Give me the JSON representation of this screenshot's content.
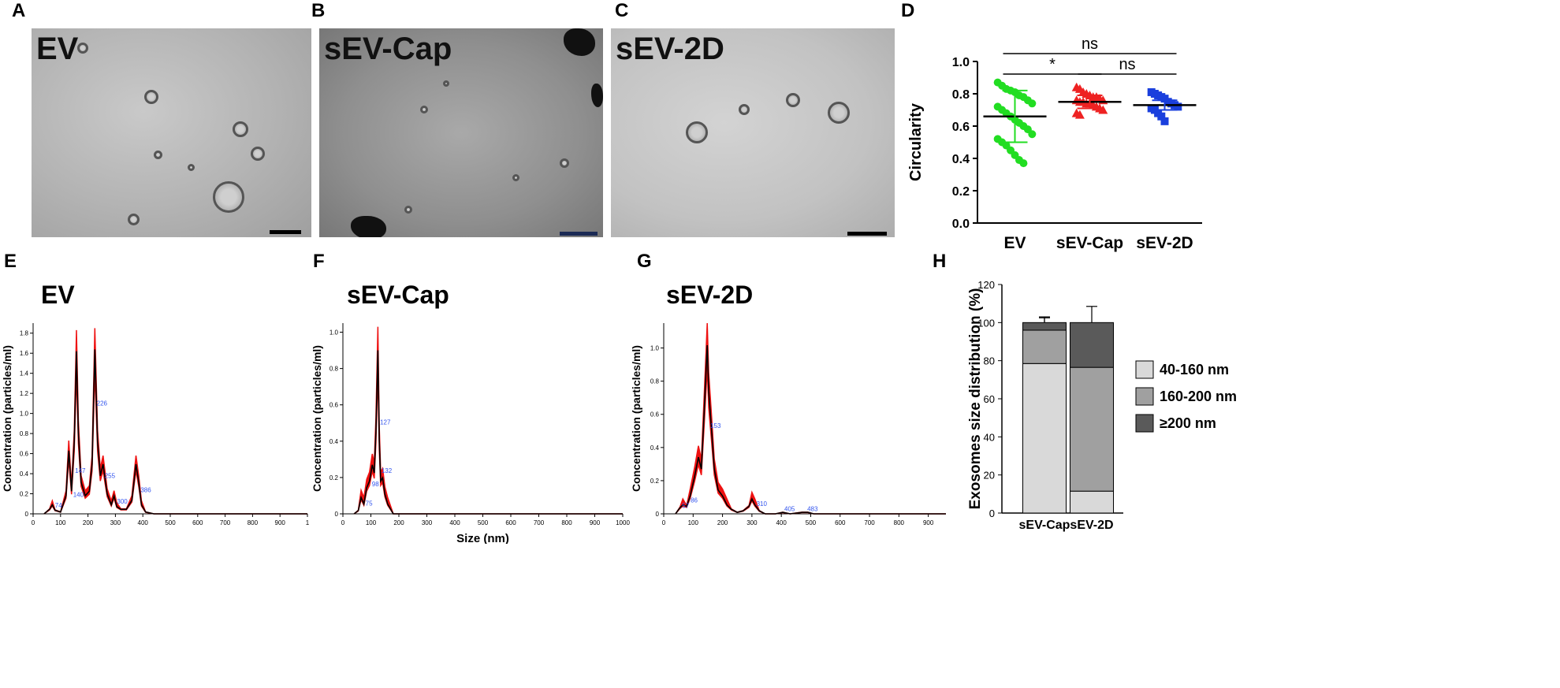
{
  "panels": {
    "A": {
      "letter": "A",
      "title": "EV"
    },
    "B": {
      "letter": "B",
      "title": "sEV-Cap"
    },
    "C": {
      "letter": "C",
      "title": "sEV-2D"
    },
    "D": {
      "letter": "D"
    },
    "E": {
      "letter": "E",
      "title": "EV"
    },
    "F": {
      "letter": "F",
      "title": "sEV-Cap"
    },
    "G": {
      "letter": "G",
      "title": "sEV-2D"
    },
    "H": {
      "letter": "H"
    }
  },
  "colors": {
    "EV": "#22dd22",
    "sEV-Cap": "#ee2222",
    "sEV-2D": "#1a3fdd",
    "nta_fill": "#ee1111"
  },
  "chart_data": [
    {
      "id": "D",
      "type": "scatter",
      "ylabel": "Circularity",
      "ylim": [
        0.0,
        1.0
      ],
      "yticks": [
        "0.0",
        "0.2",
        "0.4",
        "0.6",
        "0.8",
        "1.0"
      ],
      "categories": [
        "EV",
        "sEV-Cap",
        "sEV-2D"
      ],
      "series": [
        {
          "name": "EV",
          "mean": 0.66,
          "sd": [
            0.5,
            0.82
          ],
          "values": [
            0.87,
            0.85,
            0.83,
            0.82,
            0.81,
            0.79,
            0.78,
            0.76,
            0.74,
            0.72,
            0.7,
            0.68,
            0.66,
            0.64,
            0.62,
            0.6,
            0.58,
            0.55,
            0.52,
            0.5,
            0.48,
            0.45,
            0.42,
            0.39,
            0.37
          ]
        },
        {
          "name": "sEV-Cap",
          "mean": 0.75,
          "sd": [
            0.71,
            0.79
          ],
          "values": [
            0.84,
            0.83,
            0.81,
            0.8,
            0.79,
            0.78,
            0.78,
            0.77,
            0.76,
            0.76,
            0.75,
            0.75,
            0.74,
            0.74,
            0.73,
            0.72,
            0.71,
            0.7,
            0.68,
            0.67
          ]
        },
        {
          "name": "sEV-2D",
          "mean": 0.73,
          "sd": [
            0.7,
            0.76
          ],
          "values": [
            0.81,
            0.8,
            0.79,
            0.78,
            0.77,
            0.75,
            0.74,
            0.73,
            0.72,
            0.71,
            0.7,
            0.68,
            0.66,
            0.63
          ]
        }
      ],
      "significance": [
        {
          "from": "EV",
          "to": "sEV-2D",
          "label": "ns"
        },
        {
          "from": "EV",
          "to": "sEV-Cap",
          "label": "*"
        },
        {
          "from": "sEV-Cap",
          "to": "sEV-2D",
          "label": "ns"
        }
      ]
    },
    {
      "id": "E",
      "type": "area",
      "title": "EV",
      "ylabel": "Concentration (particles/ml)",
      "xlim": [
        0,
        1000
      ],
      "ylim": [
        0,
        1.9
      ],
      "xticks": [
        "0",
        "100",
        "200",
        "300",
        "400",
        "500",
        "600",
        "700",
        "800",
        "900",
        "1"
      ],
      "yticks": [
        "0",
        "0.2",
        "0.4",
        "0.6",
        "0.8",
        "1.0",
        "1.2",
        "1.4",
        "1.6",
        "1.8"
      ],
      "x": [
        40,
        60,
        70,
        80,
        100,
        120,
        130,
        140,
        150,
        158,
        165,
        175,
        190,
        205,
        215,
        225,
        235,
        245,
        255,
        270,
        285,
        295,
        305,
        320,
        340,
        360,
        375,
        385,
        395,
        410,
        440,
        1000
      ],
      "y": [
        0,
        0.05,
        0.1,
        0.04,
        0.02,
        0.2,
        0.7,
        0.25,
        0.8,
        1.8,
        0.9,
        0.35,
        0.2,
        0.25,
        0.55,
        1.82,
        0.8,
        0.42,
        0.55,
        0.22,
        0.1,
        0.2,
        0.08,
        0.05,
        0.05,
        0.15,
        0.55,
        0.35,
        0.1,
        0.02,
        0,
        0
      ],
      "peak_labels": [
        {
          "x": 74,
          "label": "74"
        },
        {
          "x": 140,
          "label": "140"
        },
        {
          "x": 147,
          "label": "147"
        },
        {
          "x": 226,
          "label": "226"
        },
        {
          "x": 255,
          "label": "255"
        },
        {
          "x": 300,
          "label": "300"
        },
        {
          "x": 386,
          "label": "386"
        }
      ]
    },
    {
      "id": "F",
      "type": "area",
      "title": "sEV-Cap",
      "ylabel": "Concentration (particles/ml)",
      "xlabel": "Size (nm)",
      "xlim": [
        0,
        1000
      ],
      "ylim": [
        0,
        1.05
      ],
      "xticks": [
        "0",
        "100",
        "200",
        "300",
        "400",
        "500",
        "600",
        "700",
        "800",
        "900",
        "1000"
      ],
      "yticks": [
        "0",
        "0.2",
        "0.4",
        "0.6",
        "0.8",
        "1.0"
      ],
      "x": [
        40,
        55,
        65,
        75,
        85,
        95,
        105,
        112,
        118,
        125,
        130,
        135,
        142,
        150,
        160,
        180,
        1000
      ],
      "y": [
        0,
        0.02,
        0.1,
        0.06,
        0.16,
        0.2,
        0.3,
        0.25,
        0.5,
        1.0,
        0.45,
        0.2,
        0.22,
        0.12,
        0.06,
        0,
        0
      ],
      "peak_labels": [
        {
          "x": 75,
          "label": "75"
        },
        {
          "x": 98,
          "label": "98"
        },
        {
          "x": 127,
          "label": "127"
        },
        {
          "x": 132,
          "label": "132"
        }
      ]
    },
    {
      "id": "G",
      "type": "area",
      "title": "sEV-2D",
      "ylabel": "Concentration (particles/ml)",
      "xlim": [
        0,
        960
      ],
      "ylim": [
        0,
        1.15
      ],
      "xticks": [
        "0",
        "100",
        "200",
        "300",
        "400",
        "500",
        "600",
        "700",
        "800",
        "900"
      ],
      "yticks": [
        "0",
        "0.2",
        "0.4",
        "0.6",
        "0.8",
        "1.0"
      ],
      "x": [
        40,
        55,
        65,
        78,
        90,
        105,
        118,
        128,
        138,
        148,
        153,
        162,
        172,
        185,
        200,
        215,
        230,
        250,
        270,
        290,
        300,
        310,
        325,
        345,
        380,
        405,
        430,
        470,
        490,
        510,
        550,
        960
      ],
      "y": [
        0,
        0.04,
        0.06,
        0.05,
        0.12,
        0.25,
        0.38,
        0.3,
        0.7,
        1.13,
        0.82,
        0.58,
        0.3,
        0.16,
        0.12,
        0.06,
        0.03,
        0.01,
        0.02,
        0.05,
        0.1,
        0.06,
        0.02,
        0.0,
        0.0,
        0.01,
        0.0,
        0.01,
        0.01,
        0.0,
        0,
        0
      ],
      "peak_labels": [
        {
          "x": 57,
          "label": "57"
        },
        {
          "x": 86,
          "label": "86"
        },
        {
          "x": 153,
          "label": "153"
        },
        {
          "x": 310,
          "label": "310"
        },
        {
          "x": 405,
          "label": "405"
        },
        {
          "x": 483,
          "label": "483"
        }
      ]
    },
    {
      "id": "H",
      "type": "bar",
      "stacked": true,
      "ylabel": "Exosomes size distribution (%)",
      "ylim": [
        0,
        120
      ],
      "yticks": [
        "0",
        "20",
        "40",
        "60",
        "80",
        "100",
        "120"
      ],
      "categories": [
        "sEV-Cap",
        "sEV-2D"
      ],
      "series": [
        {
          "name": "40-160 nm",
          "color": "#d9d9d9",
          "values": [
            78.5,
            11.5
          ],
          "errors": [
            0,
            2
          ]
        },
        {
          "name": "160-200 nm",
          "color": "#a0a0a0",
          "values": [
            17.5,
            65
          ],
          "errors": [
            7,
            9
          ]
        },
        {
          "name": "≥200 nm",
          "color": "#5a5a5a",
          "values": [
            4,
            23.5
          ],
          "errors": [
            2.5,
            8.5
          ]
        }
      ]
    }
  ]
}
